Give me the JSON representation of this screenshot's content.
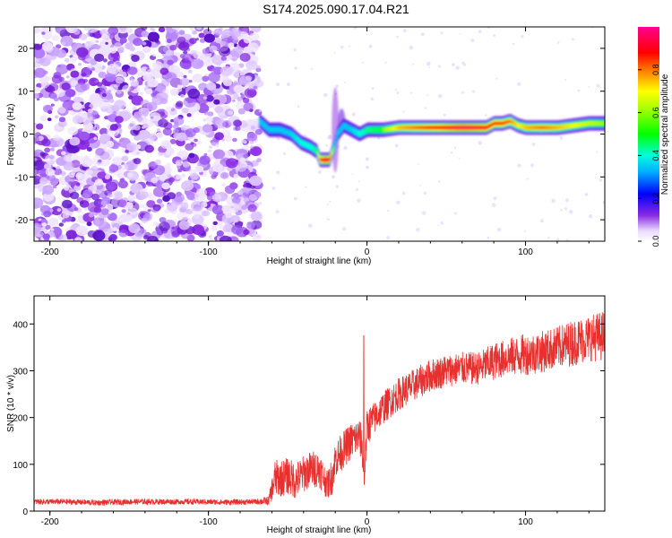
{
  "title": "S174.2025.090.17.04.R21",
  "colors": {
    "snr_line": "#e8302e",
    "spectrum_start": "#8a2be2"
  },
  "chart_data": [
    {
      "type": "heatmap",
      "xlabel": "Height of straight line (km)",
      "ylabel": "Frequency (Hz)",
      "xlim": [
        -210,
        150
      ],
      "ylim": [
        -25,
        25
      ],
      "xticks": [
        -200,
        -100,
        0,
        100
      ],
      "xtick_labels": [
        "-200",
        "-100",
        "0",
        "100"
      ],
      "yticks": [
        -20,
        -10,
        0,
        10,
        20
      ],
      "ytick_labels": [
        "-20",
        "-10",
        "0",
        "10",
        "20"
      ],
      "colorbar": {
        "label": "Normalized spectral amplitude",
        "range": [
          0,
          1
        ],
        "ticks": [
          0,
          0.2,
          0.4,
          0.6,
          0.8
        ],
        "tick_labels": [
          "0.0",
          "0.2",
          "0.4",
          "0.6",
          "0.8"
        ],
        "colormap": "rainbow (white-violet-blue-cyan-green-yellow-red-magenta)"
      },
      "noise_region_x": [
        -210,
        -68
      ],
      "trace": {
        "x": [
          -68,
          -62,
          -55,
          -48,
          -42,
          -36,
          -32,
          -30,
          -27,
          -24,
          -21,
          -19,
          -15,
          -10,
          -5,
          0,
          10,
          20,
          40,
          60,
          75,
          80,
          85,
          90,
          95,
          100,
          110,
          120,
          130,
          140,
          150
        ],
        "freq": [
          3,
          1,
          1,
          0,
          -2,
          -3,
          -4,
          -6,
          -6,
          -6,
          -3,
          0,
          2,
          1,
          0,
          1,
          1,
          1.5,
          1.5,
          1.5,
          1.5,
          2.5,
          2.5,
          3,
          2,
          1.5,
          1.5,
          1.5,
          2,
          2.5,
          2.5
        ],
        "amp": [
          0.3,
          0.35,
          0.4,
          0.45,
          0.5,
          0.5,
          0.55,
          0.8,
          0.95,
          0.9,
          0.5,
          0.35,
          0.35,
          0.45,
          0.5,
          0.55,
          0.6,
          0.75,
          0.85,
          0.95,
          0.9,
          0.85,
          0.85,
          0.8,
          0.7,
          0.75,
          0.8,
          0.75,
          0.7,
          0.65,
          0.6
        ]
      }
    },
    {
      "type": "line",
      "xlabel": "Height of straight line (km)",
      "ylabel": "SNR (10 * v/v)",
      "xlim": [
        -210,
        150
      ],
      "ylim": [
        0,
        460
      ],
      "xticks": [
        -200,
        -100,
        0,
        100
      ],
      "xtick_labels": [
        "-200",
        "-100",
        "0",
        "100"
      ],
      "yticks": [
        0,
        100,
        200,
        300,
        400
      ],
      "ytick_labels": [
        "0",
        "100",
        "200",
        "300",
        "400"
      ],
      "series": [
        {
          "x": [
            -210,
            -190,
            -170,
            -150,
            -130,
            -110,
            -90,
            -70,
            -62,
            -58,
            -54,
            -50,
            -45,
            -40,
            -35,
            -30,
            -25,
            -22,
            -20,
            -15,
            -10,
            -5,
            -3,
            -2,
            0,
            5,
            10,
            20,
            30,
            40,
            50,
            60,
            70,
            80,
            90,
            100,
            110,
            120,
            130,
            140,
            150
          ],
          "y": [
            20,
            20,
            18,
            20,
            20,
            20,
            19,
            20,
            22,
            70,
            70,
            75,
            65,
            80,
            90,
            90,
            55,
            75,
            110,
            130,
            150,
            160,
            140,
            50,
            180,
            200,
            220,
            250,
            270,
            290,
            300,
            305,
            305,
            320,
            330,
            335,
            340,
            350,
            360,
            370,
            375
          ],
          "noise": [
            6,
            6,
            6,
            6,
            6,
            6,
            6,
            6,
            10,
            40,
            40,
            40,
            40,
            40,
            40,
            40,
            30,
            40,
            40,
            40,
            40,
            40,
            40,
            20,
            40,
            35,
            35,
            35,
            35,
            35,
            35,
            35,
            35,
            40,
            40,
            45,
            45,
            45,
            50,
            50,
            55
          ]
        }
      ],
      "spike": {
        "x": -2,
        "y": 375
      }
    }
  ]
}
